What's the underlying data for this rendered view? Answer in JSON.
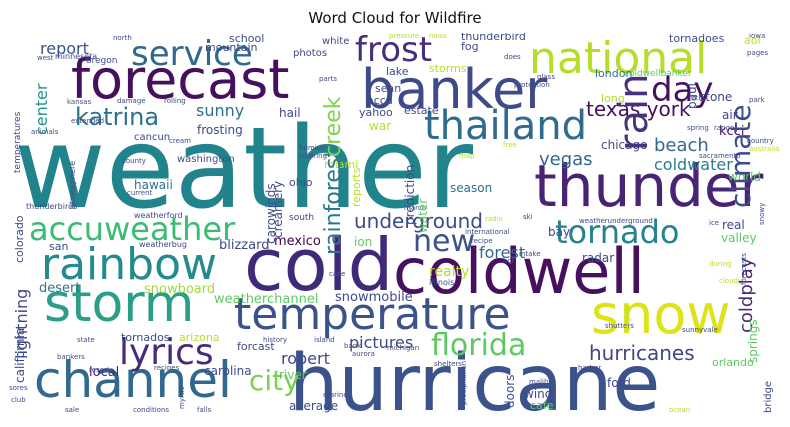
{
  "title": "Word Cloud for Wildfire",
  "colors": {
    "purple": "#46105f",
    "indigo": "#3b3f8a",
    "blue": "#345f8d",
    "teal": "#21918c",
    "green": "#2fb47c",
    "lime": "#7ad151",
    "yellow": "#c7e020"
  },
  "words": [
    {
      "id": "weather",
      "text": "weather",
      "color": "#21838c"
    },
    {
      "id": "hurricane",
      "text": "hurricane",
      "color": "#3b528b"
    },
    {
      "id": "cold",
      "text": "cold",
      "color": "#3f2a7a"
    },
    {
      "id": "coldwell",
      "text": "coldwell",
      "color": "#46105f"
    },
    {
      "id": "thunder",
      "text": "thunder",
      "color": "#482475"
    },
    {
      "id": "forecast",
      "text": "forecast",
      "color": "#46105f"
    },
    {
      "id": "banker",
      "text": "banker",
      "color": "#3e4a89"
    },
    {
      "id": "national",
      "text": "national",
      "color": "#b5de2b"
    },
    {
      "id": "snow",
      "text": "snow",
      "color": "#dde318"
    },
    {
      "id": "storm",
      "text": "storm",
      "color": "#2a9f87"
    },
    {
      "id": "channel",
      "text": "channel",
      "color": "#31688e"
    },
    {
      "id": "temperature",
      "text": "temperature",
      "color": "#3b528b"
    },
    {
      "id": "rainbow",
      "text": "rainbow",
      "color": "#238a8d"
    },
    {
      "id": "thailand",
      "text": "thailand",
      "color": "#2f6b8e"
    },
    {
      "id": "service",
      "text": "service",
      "color": "#31688e"
    },
    {
      "id": "frost",
      "text": "frost",
      "color": "#472d7b"
    },
    {
      "id": "accuweather",
      "text": "accuweather",
      "color": "#3bbb75"
    },
    {
      "id": "tornado",
      "text": "tornado",
      "color": "#26828e"
    },
    {
      "id": "lyrics",
      "text": "lyrics",
      "color": "#472a7a"
    },
    {
      "id": "new",
      "text": "new",
      "color": "#3b528b"
    },
    {
      "id": "florida",
      "text": "florida",
      "color": "#5ec962"
    },
    {
      "id": "city",
      "text": "city",
      "color": "#7ad151"
    },
    {
      "id": "day",
      "text": "day",
      "color": "#46105f"
    },
    {
      "id": "rain",
      "text": "rain",
      "color": "#46337e"
    },
    {
      "id": "climate",
      "text": "climate",
      "color": "#3e4a89"
    },
    {
      "id": "katrina",
      "text": "katrina",
      "color": "#2c728e"
    },
    {
      "id": "texasyork",
      "text": "texas york",
      "color": "#46105f"
    },
    {
      "id": "hurricanes",
      "text": "hurricanes",
      "color": "#404688"
    },
    {
      "id": "underground",
      "text": "underground",
      "color": "#3e4a89"
    },
    {
      "id": "vegas",
      "text": "vegas",
      "color": "#31688e"
    },
    {
      "id": "beach",
      "text": "beach",
      "color": "#2f6b8e"
    },
    {
      "id": "coldwater",
      "text": "coldwater",
      "color": "#287d8e"
    },
    {
      "id": "rainforest",
      "text": "rainforest",
      "color": "#2a788e"
    },
    {
      "id": "creek",
      "text": "creek",
      "color": "#81d34d"
    },
    {
      "id": "lightning",
      "text": "lightning",
      "color": "#3e4a89"
    },
    {
      "id": "coldplay",
      "text": "coldplay",
      "color": "#482878"
    },
    {
      "id": "robert",
      "text": "robert",
      "color": "#3e4a89"
    },
    {
      "id": "pictures",
      "text": "pictures",
      "color": "#404688"
    },
    {
      "id": "realty",
      "text": "realty",
      "color": "#b5de2b"
    },
    {
      "id": "forest",
      "text": "forest",
      "color": "#31688e"
    },
    {
      "id": "sunny",
      "text": "sunny",
      "color": "#2c728e"
    },
    {
      "id": "report",
      "text": "report",
      "color": "#3b528b"
    },
    {
      "id": "center",
      "text": "center",
      "color": "#21918c"
    },
    {
      "id": "mexico",
      "text": "mexico",
      "color": "#440154"
    },
    {
      "id": "blizzard",
      "text": "blizzard",
      "color": "#3e4a89"
    },
    {
      "id": "snowboard",
      "text": "snowboard",
      "color": "#a0da39"
    },
    {
      "id": "weatherchannel",
      "text": "weatherchannel",
      "color": "#5ec962"
    },
    {
      "id": "snowmobile",
      "text": "snowmobile",
      "color": "#3e4a89"
    },
    {
      "id": "desert",
      "text": "desert",
      "color": "#2c728e"
    },
    {
      "id": "california",
      "text": "california",
      "color": "#3e4a89"
    },
    {
      "id": "local",
      "text": "local",
      "color": "#482475"
    },
    {
      "id": "carolina",
      "text": "carolina",
      "color": "#3e4a89"
    },
    {
      "id": "river",
      "text": "river",
      "color": "#5ec962"
    },
    {
      "id": "average",
      "text": "average",
      "color": "#3e4a89"
    },
    {
      "id": "doors",
      "text": "doors",
      "color": "#3e4a89"
    },
    {
      "id": "wind",
      "text": "wind",
      "color": "#3e4a89"
    },
    {
      "id": "cafe",
      "text": "cafe",
      "color": "#5ec962"
    },
    {
      "id": "ford",
      "text": "ford",
      "color": "#3e4a89"
    },
    {
      "id": "orlando",
      "text": "orlando",
      "color": "#5ec962"
    },
    {
      "id": "valley",
      "text": "valley",
      "color": "#5ec962"
    },
    {
      "id": "springs",
      "text": "springs",
      "color": "#5ec962"
    },
    {
      "id": "bridge",
      "text": "bridge",
      "color": "#3e4a89"
    },
    {
      "id": "kcci",
      "text": "kcci",
      "color": "#46105f"
    },
    {
      "id": "air",
      "text": "air",
      "color": "#404688"
    },
    {
      "id": "stone",
      "text": "stone",
      "color": "#404688"
    },
    {
      "id": "world",
      "text": "world",
      "color": "#5ec962"
    },
    {
      "id": "real",
      "text": "real",
      "color": "#3e4a89"
    },
    {
      "id": "radar",
      "text": "radar",
      "color": "#3e4a89"
    },
    {
      "id": "bay",
      "text": "bay",
      "color": "#3e4a89"
    },
    {
      "id": "chicago",
      "text": "chicago",
      "color": "#3e4a89"
    },
    {
      "id": "season",
      "text": "season",
      "color": "#2c728e"
    },
    {
      "id": "water",
      "text": "water",
      "color": "#5ec962"
    },
    {
      "id": "prediction",
      "text": "prediction",
      "color": "#3e4a89"
    },
    {
      "id": "reports",
      "text": "reports",
      "color": "#b5de2b"
    },
    {
      "id": "ion",
      "text": "ion",
      "color": "#5ec962"
    },
    {
      "id": "san",
      "text": "san",
      "color": "#3e4a89"
    },
    {
      "id": "hawaii",
      "text": "hawaii",
      "color": "#2c728e"
    },
    {
      "id": "ohio",
      "text": "ohio",
      "color": "#3e4a89"
    },
    {
      "id": "carowinds",
      "text": "carowinds",
      "color": "#3e4a89"
    },
    {
      "id": "creamery",
      "text": "creamery",
      "color": "#3e4a89"
    },
    {
      "id": "miami",
      "text": "miami",
      "color": "#b5de2b"
    },
    {
      "id": "washington",
      "text": "washington",
      "color": "#3e4a89"
    },
    {
      "id": "cancun",
      "text": "cancun",
      "color": "#3e4a89"
    },
    {
      "id": "frosting",
      "text": "frosting",
      "color": "#3e4a89"
    },
    {
      "id": "hail",
      "text": "hail",
      "color": "#3e4a89"
    },
    {
      "id": "war",
      "text": "war",
      "color": "#b5de2b"
    },
    {
      "id": "yahoo",
      "text": "yahoo",
      "color": "#3e4a89"
    },
    {
      "id": "accu",
      "text": "accu",
      "color": "#3e4a89"
    },
    {
      "id": "sean",
      "text": "sean",
      "color": "#3e4a89"
    },
    {
      "id": "estate",
      "text": "estate",
      "color": "#3e4a89"
    },
    {
      "id": "storms",
      "text": "storms",
      "color": "#b5de2b"
    },
    {
      "id": "lake",
      "text": "lake",
      "color": "#3e4a89"
    },
    {
      "id": "london",
      "text": "london",
      "color": "#2c728e"
    },
    {
      "id": "long",
      "text": "long",
      "color": "#b5de2b"
    },
    {
      "id": "paul",
      "text": "paul",
      "color": "#3e4a89"
    },
    {
      "id": "coldwellbanker",
      "text": "coldwellbanker",
      "color": "#5ec962"
    },
    {
      "id": "fog",
      "text": "fog",
      "color": "#3e4a89"
    },
    {
      "id": "thunderbird",
      "text": "thunderbird",
      "color": "#3e4a89"
    },
    {
      "id": "tornadoes",
      "text": "tornadoes",
      "color": "#3e4a89"
    },
    {
      "id": "aol",
      "text": "aol",
      "color": "#b5de2b"
    },
    {
      "id": "school",
      "text": "school",
      "color": "#3e4a89"
    },
    {
      "id": "white",
      "text": "white",
      "color": "#3e4a89"
    },
    {
      "id": "mountain",
      "text": "mountain",
      "color": "#3e4a89"
    },
    {
      "id": "photos",
      "text": "photos",
      "color": "#3e4a89"
    },
    {
      "id": "temperatures",
      "text": "temperatures",
      "color": "#3e4a89"
    },
    {
      "id": "colorado",
      "text": "colorado",
      "color": "#3e4a89"
    },
    {
      "id": "tornados",
      "text": "tornados",
      "color": "#3e4a89"
    },
    {
      "id": "arizona",
      "text": "arizona",
      "color": "#b5de2b"
    },
    {
      "id": "forcast",
      "text": "forcast",
      "color": "#3e4a89"
    },
    {
      "id": "south",
      "text": "south",
      "color": "#3e4a89"
    },
    {
      "id": "thunderbirds",
      "text": "thunderbirds",
      "color": "#3e4a89"
    },
    {
      "id": "weatherford",
      "text": "weatherford",
      "color": "#3e4a89"
    },
    {
      "id": "weatherbug",
      "text": "weatherbug",
      "color": "#3e4a89"
    },
    {
      "id": "oregon",
      "text": "oregon",
      "color": "#3e4a89"
    },
    {
      "id": "minnesota",
      "text": "minnesota",
      "color": "#3e4a89"
    },
    {
      "id": "illinois",
      "text": "illinois",
      "color": "#3e4a89"
    },
    {
      "id": "shelters",
      "text": "shelters",
      "color": "#3e4a89"
    },
    {
      "id": "michigan",
      "text": "michigan",
      "color": "#3e4a89"
    },
    {
      "id": "aurora",
      "text": "aurora",
      "color": "#3e4a89"
    },
    {
      "id": "resort",
      "text": "resort",
      "color": "#3e4a89"
    },
    {
      "id": "recipes",
      "text": "recipes",
      "color": "#3e4a89"
    },
    {
      "id": "ocean",
      "text": "ocean",
      "color": "#b5de2b"
    },
    {
      "id": "marine",
      "text": "marine",
      "color": "#3e4a89"
    },
    {
      "id": "falls",
      "text": "falls",
      "color": "#3e4a89"
    },
    {
      "id": "conditions",
      "text": "conditions",
      "color": "#3e4a89"
    },
    {
      "id": "history",
      "text": "history",
      "color": "#3e4a89"
    },
    {
      "id": "island",
      "text": "island",
      "color": "#3e4a89"
    },
    {
      "id": "bank",
      "text": "bank",
      "color": "#3e4a89"
    },
    {
      "id": "sacramento",
      "text": "sacramento",
      "color": "#3e4a89"
    },
    {
      "id": "radio",
      "text": "radio",
      "color": "#b5de2b"
    },
    {
      "id": "intake",
      "text": "intake",
      "color": "#3e4a89"
    },
    {
      "id": "hot",
      "text": "hot",
      "color": "#3e4a89"
    },
    {
      "id": "cloudy",
      "text": "cloudy",
      "color": "#b5de2b"
    },
    {
      "id": "shutters",
      "text": "shutters",
      "color": "#3e4a89"
    },
    {
      "id": "sunnyvale",
      "text": "sunnyvale",
      "color": "#3e4a89"
    },
    {
      "id": "harbor",
      "text": "harbor",
      "color": "#3e4a89"
    },
    {
      "id": "international",
      "text": "international",
      "color": "#3e4a89"
    },
    {
      "id": "recipe",
      "text": "recipe",
      "color": "#3e4a89"
    },
    {
      "id": "march",
      "text": "march",
      "color": "#3e4a89"
    },
    {
      "id": "map",
      "text": "map",
      "color": "#b5de2b"
    },
    {
      "id": "ski",
      "text": "ski",
      "color": "#3e4a89"
    },
    {
      "id": "pressure",
      "text": "pressure",
      "color": "#b5de2b"
    },
    {
      "id": "noaa",
      "text": "noaa",
      "color": "#b5de2b"
    },
    {
      "id": "protection",
      "text": "protection",
      "color": "#3e4a89"
    },
    {
      "id": "glass",
      "text": "glass",
      "color": "#3e4a89"
    },
    {
      "id": "humidity",
      "text": "humidity",
      "color": "#3e4a89"
    },
    {
      "id": "coloring",
      "text": "coloring",
      "color": "#3e4a89"
    },
    {
      "id": "rolling",
      "text": "rolling",
      "color": "#3e4a89"
    },
    {
      "id": "damage",
      "text": "damage",
      "color": "#3e4a89"
    },
    {
      "id": "kansas",
      "text": "kansas",
      "color": "#3e4a89"
    },
    {
      "id": "extended",
      "text": "extended",
      "color": "#3e4a89"
    },
    {
      "id": "animals",
      "text": "animals",
      "color": "#3e4a89"
    },
    {
      "id": "county",
      "text": "county",
      "color": "#3e4a89"
    },
    {
      "id": "current",
      "text": "current",
      "color": "#3e4a89"
    },
    {
      "id": "atmosphere",
      "text": "atmosphere",
      "color": "#3e4a89"
    },
    {
      "id": "state",
      "text": "state",
      "color": "#3e4a89"
    },
    {
      "id": "bankers",
      "text": "bankers",
      "color": "#3e4a89"
    },
    {
      "id": "sores",
      "text": "sores",
      "color": "#3e4a89"
    },
    {
      "id": "club",
      "text": "club",
      "color": "#3e4a89"
    },
    {
      "id": "sale",
      "text": "sale",
      "color": "#3e4a89"
    },
    {
      "id": "spring",
      "text": "spring",
      "color": "#3e4a89"
    },
    {
      "id": "country",
      "text": "country",
      "color": "#3e4a89"
    },
    {
      "id": "australia",
      "text": "australia",
      "color": "#b5de2b"
    },
    {
      "id": "pages",
      "text": "pages",
      "color": "#3e4a89"
    },
    {
      "id": "iowa",
      "text": "iowa",
      "color": "#3e4a89"
    },
    {
      "id": "park",
      "text": "park",
      "color": "#3e4a89"
    },
    {
      "id": "range",
      "text": "range",
      "color": "#3e4a89"
    },
    {
      "id": "little",
      "text": "little",
      "color": "#3e4a89"
    },
    {
      "id": "snowy",
      "text": "snowy",
      "color": "#3e4a89"
    },
    {
      "id": "forecasts",
      "text": "forecasts",
      "color": "#3e4a89"
    },
    {
      "id": "during",
      "text": "during",
      "color": "#b5de2b"
    },
    {
      "id": "parts",
      "text": "parts",
      "color": "#3e4a89"
    },
    {
      "id": "cream",
      "text": "cream",
      "color": "#3e4a89"
    },
    {
      "id": "ice",
      "text": "ice",
      "color": "#3e4a89"
    },
    {
      "id": "does",
      "text": "does",
      "color": "#3e4a89"
    },
    {
      "id": "north",
      "text": "north",
      "color": "#3e4a89"
    },
    {
      "id": "west",
      "text": "west",
      "color": "#3e4a89"
    },
    {
      "id": "myrtle",
      "text": "myrtle",
      "color": "#3e4a89"
    },
    {
      "id": "malibu",
      "text": "malibu",
      "color": "#3e4a89"
    },
    {
      "id": "precipitation",
      "text": "precipitation",
      "color": "#3e4a89"
    },
    {
      "id": "free",
      "text": "free",
      "color": "#b5de2b"
    },
    {
      "id": "cake",
      "text": "cake",
      "color": "#3e4a89"
    },
    {
      "id": "weatherunderground",
      "text": "weatherunderground",
      "color": "#3e4a89"
    },
    {
      "id": "virginia",
      "text": "virginia",
      "color": "#b5de2b"
    }
  ]
}
